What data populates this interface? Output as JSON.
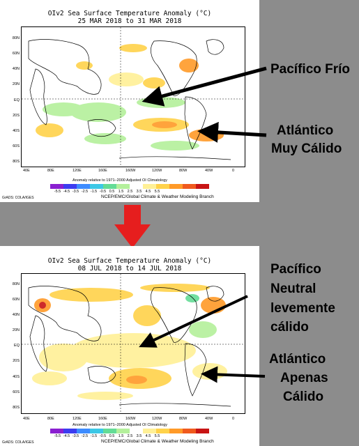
{
  "panels": [
    {
      "title_line1": "OIv2 Sea Surface Temperature Anomaly (°C)",
      "title_line2": "25 MAR 2018 to 31 MAR 2018"
    },
    {
      "title_line1": "OIv2 Sea Surface Temperature Anomaly (°C)",
      "title_line2": "08 JUL 2018 to 14 JUL 2018"
    }
  ],
  "lat_labels": [
    "80N",
    "60N",
    "40N",
    "20N",
    "EQ",
    "20S",
    "40S",
    "60S",
    "80S"
  ],
  "lon_labels": [
    "40E",
    "80E",
    "120E",
    "160E",
    "160W",
    "120W",
    "80W",
    "40W",
    "0"
  ],
  "colorbar": {
    "title": "Anomaly relative to 1971–2000 Adjusted OI Climatology",
    "labels": [
      "-5.5",
      "-4.5",
      "-3.5",
      "-2.5",
      "-1.5",
      "-0.5",
      "0.5",
      "1.5",
      "2.5",
      "3.5",
      "4.5",
      "5.5"
    ],
    "colors": [
      "#8a1fd0",
      "#3c3cf0",
      "#3d8cff",
      "#3cc8e6",
      "#64dc96",
      "#b4f09b",
      "#ffffff",
      "#fff096",
      "#ffd24a",
      "#ff9a28",
      "#f05a1e",
      "#c81414"
    ]
  },
  "credit": "NCEP/EMC/Global Climate & Weather Modeling Branch",
  "grads": "GrADS: COLA/IGES",
  "annotations": {
    "pacifico_frio": "Pacífico Frío",
    "atlantico_muy_calido_1": "Atlántico",
    "atlantico_muy_calido_2": "Muy Cálido",
    "pacifico_neutral_1": "Pacífico",
    "pacifico_neutral_2": "Neutral",
    "pacifico_neutral_3": "levemente",
    "pacifico_neutral_4": "cálido",
    "atlantico_apenas_1": "Atlántico",
    "atlantico_apenas_2": "Apenas",
    "atlantico_apenas_3": "Cálido"
  },
  "colors": {
    "background": "#8c8c8c",
    "transition_arrow": "#e61e1e"
  }
}
